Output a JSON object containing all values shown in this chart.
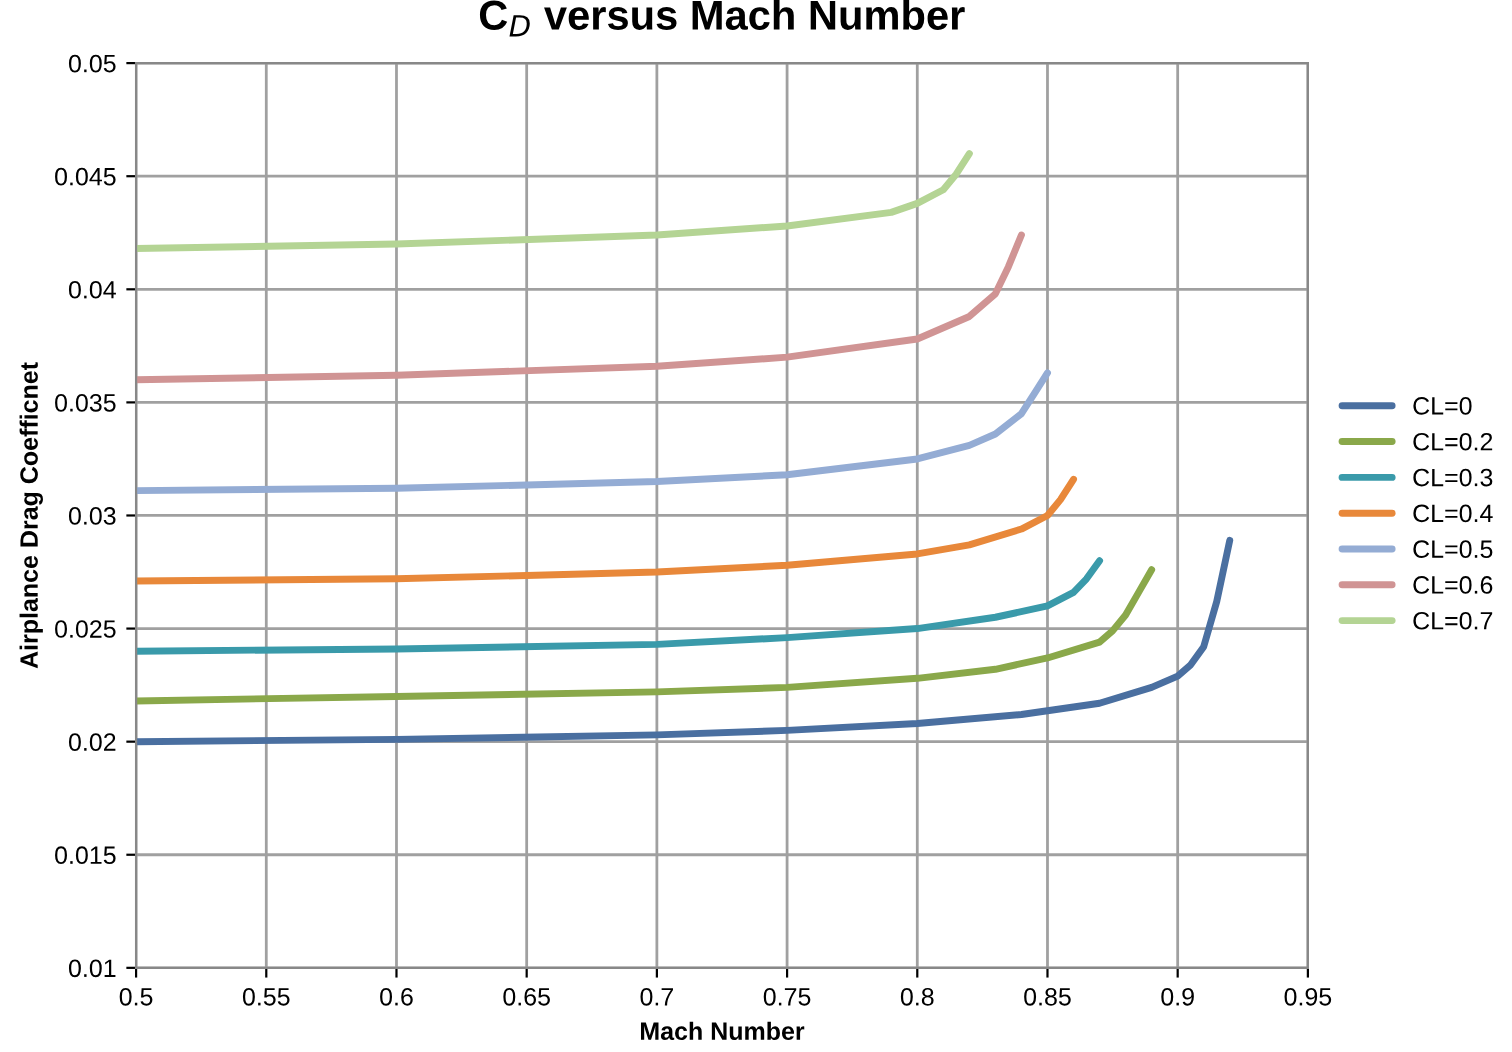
{
  "chart_data": {
    "type": "line",
    "title": "C$_{D}$ versus Mach Number",
    "xlabel": "Mach Number",
    "ylabel": "Airplance Drag Coefficnet",
    "xlim": [
      0.5,
      0.95
    ],
    "xticks": [
      0.5,
      0.55,
      0.6,
      0.65,
      0.7,
      0.75,
      0.8,
      0.85,
      0.9,
      0.95
    ],
    "ylim": [
      0.01,
      0.05
    ],
    "yticks": [
      0.01,
      0.015,
      0.02,
      0.025,
      0.03,
      0.035,
      0.04,
      0.045,
      0.05
    ],
    "grid": true,
    "legend": "right",
    "marker": "none",
    "line_style": "solid",
    "series": [
      {
        "name": "CL=0",
        "color": "#4a6fa0",
        "x": [
          0.5,
          0.6,
          0.7,
          0.75,
          0.8,
          0.84,
          0.87,
          0.89,
          0.9,
          0.905,
          0.91,
          0.915,
          0.92
        ],
        "values": [
          0.02,
          0.0201,
          0.0203,
          0.0205,
          0.0208,
          0.0212,
          0.0217,
          0.0224,
          0.0229,
          0.0234,
          0.0242,
          0.0262,
          0.0289
        ]
      },
      {
        "name": "CL=0.2",
        "color": "#8aa84a",
        "x": [
          0.5,
          0.6,
          0.7,
          0.75,
          0.8,
          0.83,
          0.85,
          0.87,
          0.875,
          0.88,
          0.885,
          0.89
        ],
        "values": [
          0.0218,
          0.022,
          0.0222,
          0.0224,
          0.0228,
          0.0232,
          0.0237,
          0.0244,
          0.0249,
          0.0256,
          0.0266,
          0.0276
        ]
      },
      {
        "name": "CL=0.3",
        "color": "#3a9aaa",
        "x": [
          0.5,
          0.6,
          0.7,
          0.75,
          0.8,
          0.83,
          0.85,
          0.86,
          0.865,
          0.87
        ],
        "values": [
          0.024,
          0.0241,
          0.0243,
          0.0246,
          0.025,
          0.0255,
          0.026,
          0.0266,
          0.0272,
          0.028
        ]
      },
      {
        "name": "CL=0.4",
        "color": "#e8883a",
        "x": [
          0.5,
          0.6,
          0.7,
          0.75,
          0.8,
          0.82,
          0.84,
          0.85,
          0.855,
          0.86
        ],
        "values": [
          0.0271,
          0.0272,
          0.0275,
          0.0278,
          0.0283,
          0.0287,
          0.0294,
          0.03,
          0.0307,
          0.0316
        ]
      },
      {
        "name": "CL=0.5",
        "color": "#94acd4",
        "x": [
          0.5,
          0.6,
          0.7,
          0.75,
          0.8,
          0.82,
          0.83,
          0.84,
          0.845,
          0.85
        ],
        "values": [
          0.0311,
          0.0312,
          0.0315,
          0.0318,
          0.0325,
          0.0331,
          0.0336,
          0.0345,
          0.0354,
          0.0363
        ]
      },
      {
        "name": "CL=0.6",
        "color": "#d09494",
        "x": [
          0.5,
          0.6,
          0.7,
          0.75,
          0.8,
          0.82,
          0.83,
          0.835,
          0.84
        ],
        "values": [
          0.036,
          0.0362,
          0.0366,
          0.037,
          0.0378,
          0.0388,
          0.0398,
          0.041,
          0.0424
        ]
      },
      {
        "name": "CL=0.7",
        "color": "#b4d494",
        "x": [
          0.5,
          0.6,
          0.7,
          0.75,
          0.79,
          0.8,
          0.81,
          0.815,
          0.82
        ],
        "values": [
          0.0418,
          0.042,
          0.0424,
          0.0428,
          0.0434,
          0.0438,
          0.0444,
          0.0451,
          0.046
        ]
      }
    ]
  }
}
